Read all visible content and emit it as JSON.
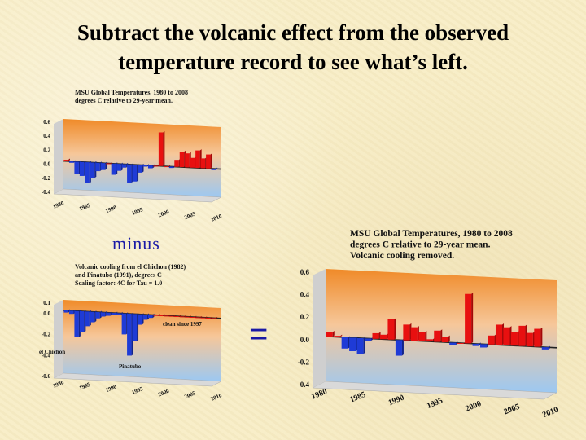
{
  "slide": {
    "title_line1": "Subtract the volcanic effect from the observed",
    "title_line2": "temperature record to see what’s left.",
    "minus_label": "minus",
    "equals_label": "="
  },
  "chart_data": [
    {
      "id": "top",
      "type": "bar",
      "title_lines": [
        "MSU Global Temperatures, 1980 to 2008",
        "degrees C relative to 29-year mean."
      ],
      "yticks": [
        "0.6",
        "0.4",
        "0.2",
        "0.0",
        "-0.2",
        "-0.4"
      ],
      "ylim": [
        -0.4,
        0.6
      ],
      "xticks": [
        "1980",
        "1985",
        "1990",
        "1995",
        "2000",
        "2005",
        "2010"
      ],
      "xlim": [
        1980,
        2010
      ],
      "annotations": [],
      "values": [
        0.02,
        -0.02,
        -0.18,
        -0.2,
        -0.3,
        -0.22,
        -0.12,
        -0.1,
        0.0,
        -0.16,
        -0.1,
        -0.05,
        -0.26,
        -0.24,
        -0.11,
        -0.02,
        -0.04,
        0.0,
        0.48,
        0.0,
        -0.02,
        0.1,
        0.22,
        0.2,
        0.14,
        0.25,
        0.14,
        0.2,
        -0.02
      ]
    },
    {
      "id": "bottom",
      "type": "bar",
      "title_lines": [
        "Volcanic cooling from el Chichon (1982)",
        "and Pinatubo (1991), degrees C",
        "Scaling factor: 4C for Tau = 1.0"
      ],
      "yticks": [
        "0.1",
        "0.0",
        "-0.2",
        "-0.4",
        "-0.6"
      ],
      "ylim": [
        -0.6,
        0.1
      ],
      "xticks": [
        "1980",
        "1985",
        "1990",
        "1995",
        "2000",
        "2005",
        "2010"
      ],
      "xlim": [
        1980,
        2010
      ],
      "annotations": [
        "clean since 1997",
        "el Chichon",
        "Pinatubo"
      ],
      "values": [
        -0.02,
        -0.03,
        -0.25,
        -0.2,
        -0.14,
        -0.1,
        -0.06,
        -0.04,
        -0.03,
        -0.02,
        -0.02,
        -0.2,
        -0.4,
        -0.26,
        -0.1,
        -0.05,
        -0.03,
        0.0,
        0.0,
        0.0,
        0.0,
        0.0,
        0.0,
        0.0,
        0.0,
        0.0,
        0.0,
        0.0,
        0.0
      ]
    },
    {
      "id": "result",
      "type": "bar",
      "title_lines": [
        "MSU Global Temperatures, 1980 to 2008",
        "degrees C relative to 29-year mean.",
        "Volcanic cooling removed."
      ],
      "yticks": [
        "0.6",
        "0.4",
        "0.2",
        "0.0",
        "-0.2",
        "-0.4"
      ],
      "ylim": [
        -0.4,
        0.6
      ],
      "xticks": [
        "1980",
        "1985",
        "1990",
        "1995",
        "2000",
        "2005",
        "2010"
      ],
      "xlim": [
        1980,
        2010
      ],
      "annotations": [],
      "values": [
        0.04,
        0.01,
        -0.1,
        -0.12,
        -0.14,
        -0.02,
        0.05,
        0.04,
        0.18,
        -0.14,
        0.14,
        0.12,
        0.08,
        0.02,
        0.1,
        0.05,
        -0.02,
        0.0,
        0.44,
        -0.02,
        -0.03,
        0.08,
        0.18,
        0.16,
        0.12,
        0.18,
        0.12,
        0.16,
        -0.02
      ]
    }
  ],
  "colors": {
    "positive": "#e81010",
    "negative": "#1f3bd6",
    "panel_top": "#f08a28",
    "panel_bottom": "#9cc8f2"
  }
}
